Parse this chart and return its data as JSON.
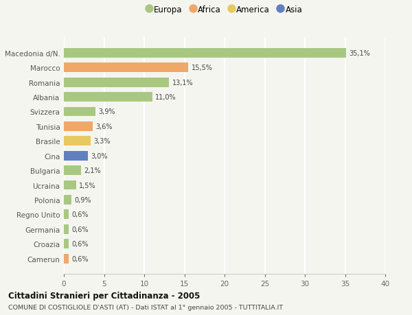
{
  "categories": [
    "Camerun",
    "Croazia",
    "Germania",
    "Regno Unito",
    "Polonia",
    "Ucraina",
    "Bulgaria",
    "Cina",
    "Brasile",
    "Tunisia",
    "Svizzera",
    "Albania",
    "Romania",
    "Marocco",
    "Macedonia d/N."
  ],
  "values": [
    0.6,
    0.6,
    0.6,
    0.6,
    0.9,
    1.5,
    2.1,
    3.0,
    3.3,
    3.6,
    3.9,
    11.0,
    13.1,
    15.5,
    35.1
  ],
  "labels": [
    "0,6%",
    "0,6%",
    "0,6%",
    "0,6%",
    "0,9%",
    "1,5%",
    "2,1%",
    "3,0%",
    "3,3%",
    "3,6%",
    "3,9%",
    "11,0%",
    "13,1%",
    "15,5%",
    "35,1%"
  ],
  "colors": [
    "#f0a868",
    "#a8c882",
    "#a8c882",
    "#a8c882",
    "#a8c882",
    "#a8c882",
    "#a8c882",
    "#6080c0",
    "#e8c860",
    "#f0a868",
    "#a8c882",
    "#a8c882",
    "#a8c882",
    "#f0a868",
    "#a8c882"
  ],
  "legend_labels": [
    "Europa",
    "Africa",
    "America",
    "Asia"
  ],
  "legend_colors": [
    "#a8c882",
    "#f0a868",
    "#e8c860",
    "#6080c0"
  ],
  "xlim": [
    0,
    40
  ],
  "xticks": [
    0,
    5,
    10,
    15,
    20,
    25,
    30,
    35,
    40
  ],
  "title": "Cittadini Stranieri per Cittadinanza - 2005",
  "subtitle": "COMUNE DI COSTIGLIOLE D'ASTI (AT) - Dati ISTAT al 1° gennaio 2005 - TUTTITALIA.IT",
  "background_color": "#f5f5f0",
  "grid_color": "#ffffff",
  "bar_height": 0.65
}
